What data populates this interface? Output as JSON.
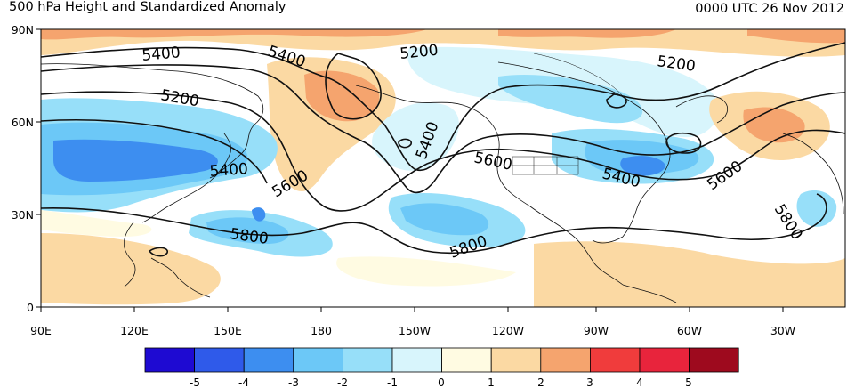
{
  "title_left": "500 hPa Height and Standardized Anomaly",
  "title_right": "0000 UTC 26 Nov 2012",
  "axes": {
    "lat_ticks": [
      "90N",
      "60N",
      "30N",
      "0"
    ],
    "lon_ticks": [
      "90E",
      "120E",
      "150E",
      "180",
      "150W",
      "120W",
      "90W",
      "60W",
      "30W"
    ]
  },
  "contour_labels": [
    "5400",
    "5400",
    "5200",
    "5200",
    "5200",
    "5400",
    "5400",
    "5600",
    "5600",
    "5400",
    "5600",
    "5800",
    "5800",
    "5800"
  ],
  "colorbar": {
    "labels": [
      "-5",
      "-4",
      "-3",
      "-2",
      "-1",
      "0",
      "1",
      "2",
      "3",
      "4",
      "5"
    ],
    "colors": [
      "#1e0ad2",
      "#2f5aea",
      "#3d8ef0",
      "#6cc8f7",
      "#97dff9",
      "#d8f5fc",
      "#fffbe2",
      "#fbd9a3",
      "#f5a46e",
      "#f03c3c",
      "#e8243c",
      "#9e0a1e"
    ]
  },
  "palette": {
    "neutral": "#ffffff",
    "coast": "#111111",
    "contour": "#111111"
  }
}
